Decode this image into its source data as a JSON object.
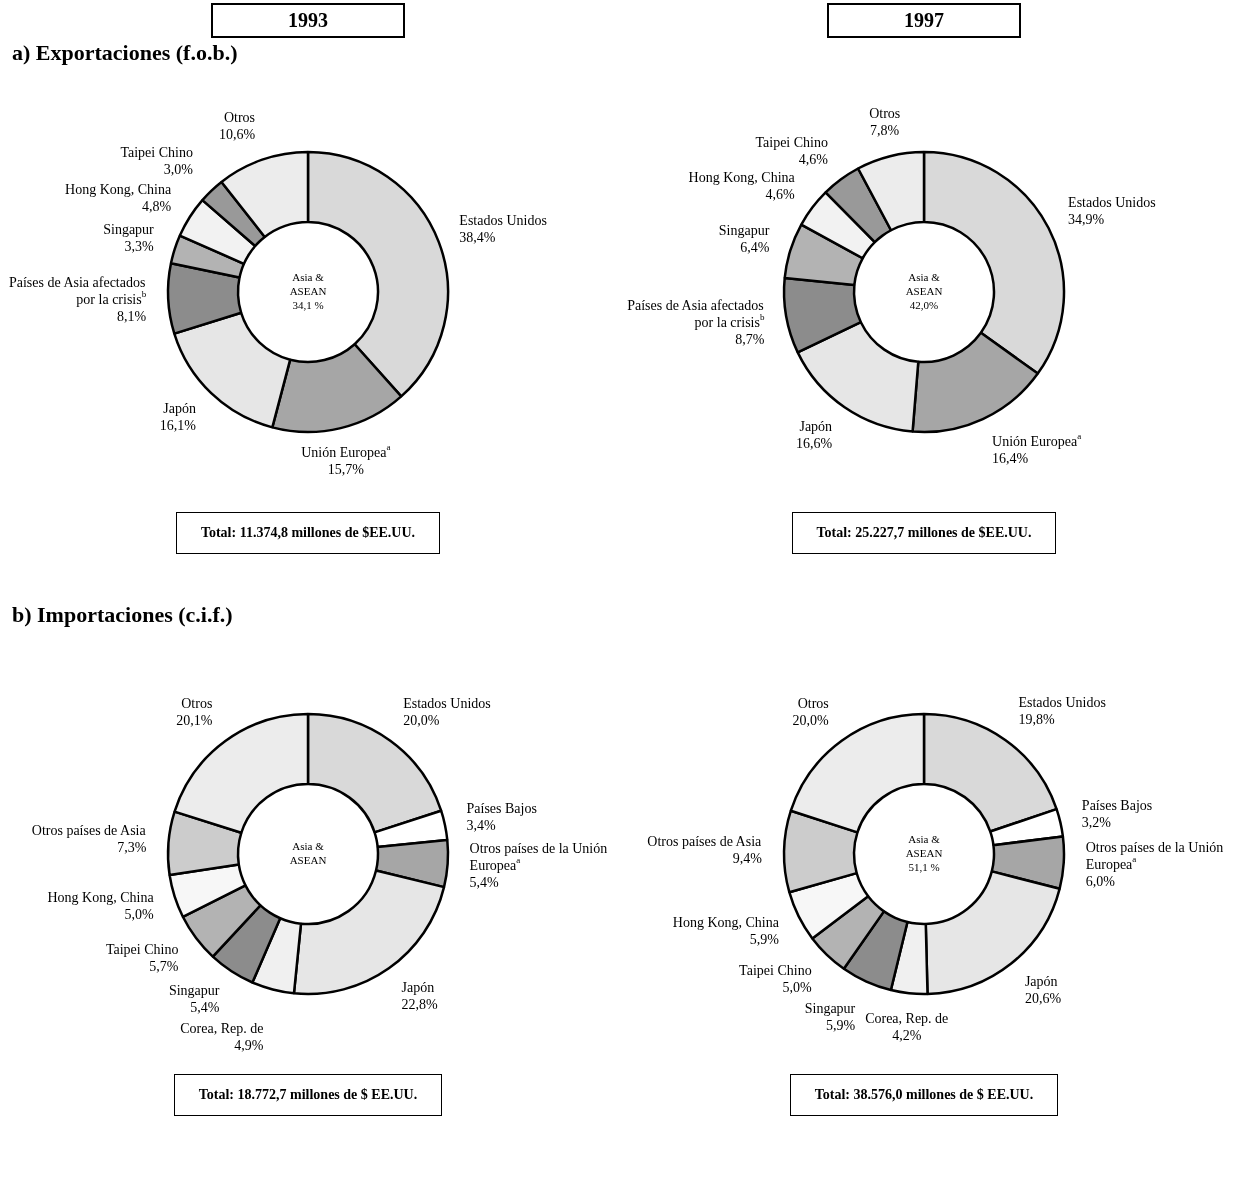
{
  "chart_data": [
    {
      "type": "donut",
      "title": "1993",
      "subtitle": "a) Exportaciones (f.o.b.)",
      "categories": [
        "Estados Unidos",
        "Unión Europea$^{a}$",
        "Japón",
        "Países de Asia afectados por la crisis$^{b}$",
        "Singapur",
        "Hong Kong, China",
        "Taipei Chino",
        "Otros"
      ],
      "values": [
        38.4,
        15.7,
        16.1,
        8.1,
        3.3,
        4.8,
        3.0,
        10.6
      ],
      "value_labels": [
        "38,4%",
        "15,7%",
        "16,1%",
        "8,1%",
        "3,3%",
        "4,8%",
        "3,0%",
        "10,6%"
      ],
      "colors": [
        "#d9d9d9",
        "#a6a6a6",
        "#e6e6e6",
        "#8c8c8c",
        "#b3b3b3",
        "#f2f2f2",
        "#999999",
        "#ececec"
      ],
      "annotations": [
        "Asia & ASEAN 34,1 %",
        "Total:  11.374,8 millones de $EE.UU."
      ]
    },
    {
      "type": "donut",
      "title": "1997",
      "categories": [
        "Estados Unidos",
        "Unión Europea$^{a}$",
        "Japón",
        "Países de Asia afectados por la crisis$^{b}$",
        "Singapur",
        "Hong Kong, China",
        "Taipei Chino",
        "Otros"
      ],
      "values": [
        34.9,
        16.4,
        16.6,
        8.7,
        6.4,
        4.6,
        4.6,
        7.8
      ],
      "value_labels": [
        "34,9%",
        "16,4%",
        "16,6%",
        "8,7%",
        "6,4%",
        "4,6%",
        "4,6%",
        "7,8%"
      ],
      "colors": [
        "#d9d9d9",
        "#a6a6a6",
        "#e6e6e6",
        "#8c8c8c",
        "#b3b3b3",
        "#f2f2f2",
        "#999999",
        "#ececec"
      ],
      "annotations": [
        "Asia & ASEAN 42,0%",
        "Total:  25.227,7 millones de $EE.UU."
      ]
    },
    {
      "type": "donut",
      "subtitle": "b) Importaciones (c.i.f.)",
      "categories": [
        "Estados Unidos",
        "Países Bajos",
        "Otros países de la Unión Europea$^{a}$",
        "Japón",
        "Corea, Rep. de",
        "Singapur",
        "Taipei Chino",
        "Hong Kong, China",
        "Otros países de Asia",
        "Otros"
      ],
      "values": [
        20.0,
        3.4,
        5.4,
        22.8,
        4.9,
        5.4,
        5.7,
        5.0,
        7.3,
        20.1
      ],
      "value_labels": [
        "20,0%",
        "3,4%",
        "5,4%",
        "22,8%",
        "4,9%",
        "5,4%",
        "5,7%",
        "5,0%",
        "7,3%",
        "20,1%"
      ],
      "colors": [
        "#d9d9d9",
        "#ffffff",
        "#a6a6a6",
        "#e6e6e6",
        "#f0f0f0",
        "#8c8c8c",
        "#b3b3b3",
        "#f7f7f7",
        "#cccccc",
        "#ececec"
      ],
      "annotations": [
        "Asia & ASEAN",
        "Total:   18.772,7 millones de $ EE.UU."
      ]
    },
    {
      "type": "donut",
      "categories": [
        "Estados Unidos",
        "Países Bajos",
        "Otros países de la Unión Europea$^{a}$",
        "Japón",
        "Corea, Rep. de",
        "Singapur",
        "Taipei Chino",
        "Hong Kong, China",
        "Otros países de Asia",
        "Otros"
      ],
      "values": [
        19.8,
        3.2,
        6.0,
        20.6,
        4.2,
        5.9,
        5.0,
        5.9,
        9.4,
        20.0
      ],
      "value_labels": [
        "19,8%",
        "3,2%",
        "6,0%",
        "20,6%",
        "4,2%",
        "5,9%",
        "5,0%",
        "5,9%",
        "9,4%",
        "20,0%"
      ],
      "colors": [
        "#d9d9d9",
        "#ffffff",
        "#a6a6a6",
        "#e6e6e6",
        "#f0f0f0",
        "#8c8c8c",
        "#b3b3b3",
        "#f7f7f7",
        "#cccccc",
        "#ececec"
      ],
      "annotations": [
        "Asia & ASEAN 51,1 %",
        "Total:   38.576,0 millones de $ EE.UU."
      ]
    }
  ]
}
